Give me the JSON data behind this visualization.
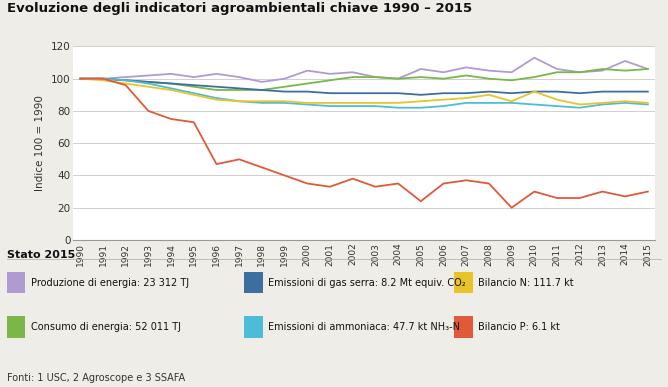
{
  "title": "Evoluzione degli indicatori agroambientali chiave 1990 – 2015",
  "ylabel": "Indice 100 = 1990",
  "years": [
    1990,
    1991,
    1992,
    1993,
    1994,
    1995,
    1996,
    1997,
    1998,
    1999,
    2000,
    2001,
    2002,
    2003,
    2004,
    2005,
    2006,
    2007,
    2008,
    2009,
    2010,
    2011,
    2012,
    2013,
    2014,
    2015
  ],
  "series": [
    {
      "name": "Produzione di energia",
      "color": "#b09ad2",
      "values": [
        100,
        100,
        101,
        102,
        103,
        101,
        103,
        101,
        98,
        100,
        105,
        103,
        104,
        101,
        100,
        106,
        104,
        107,
        105,
        104,
        113,
        106,
        104,
        105,
        111,
        106
      ]
    },
    {
      "name": "Consumo di energia",
      "color": "#7ab648",
      "values": [
        100,
        100,
        99,
        98,
        97,
        95,
        93,
        93,
        93,
        95,
        97,
        99,
        101,
        101,
        100,
        101,
        100,
        102,
        100,
        99,
        101,
        104,
        104,
        106,
        105,
        106
      ]
    },
    {
      "name": "Emissioni di gas serra",
      "color": "#3c6fa0",
      "values": [
        100,
        100,
        99,
        98,
        97,
        96,
        95,
        94,
        93,
        92,
        92,
        91,
        91,
        91,
        91,
        90,
        91,
        91,
        92,
        91,
        92,
        92,
        91,
        92,
        92,
        92
      ]
    },
    {
      "name": "Emissioni di ammoniaca",
      "color": "#4dbcd8",
      "values": [
        100,
        100,
        99,
        97,
        94,
        91,
        88,
        86,
        85,
        85,
        84,
        83,
        83,
        83,
        82,
        82,
        83,
        85,
        85,
        85,
        84,
        83,
        82,
        84,
        85,
        84
      ]
    },
    {
      "name": "Bilancio N",
      "color": "#e8c428",
      "values": [
        100,
        99,
        97,
        95,
        93,
        90,
        87,
        86,
        86,
        86,
        85,
        85,
        85,
        85,
        85,
        86,
        87,
        88,
        90,
        86,
        92,
        87,
        84,
        85,
        86,
        85
      ]
    },
    {
      "name": "Bilancio P",
      "color": "#e05a3a",
      "values": [
        100,
        100,
        96,
        80,
        75,
        73,
        47,
        50,
        45,
        40,
        35,
        33,
        38,
        33,
        35,
        24,
        35,
        37,
        35,
        20,
        30,
        26,
        26,
        30,
        27,
        30
      ]
    }
  ],
  "ylim": [
    0,
    120
  ],
  "yticks": [
    0,
    20,
    40,
    60,
    80,
    100,
    120
  ],
  "subtitle": "Stato 2015",
  "footnote": "Fonti: 1 USC, 2 Agroscope e 3 SSAFA",
  "background_color": "#eeede8",
  "plot_background": "#ffffff",
  "legend_items": [
    {
      "label": "Produzione di energia: 23 312 TJ",
      "color": "#b09ad2"
    },
    {
      "label": "Emissioni di gas serra: 8.2 Mt equiv. CO₂",
      "color": "#3c6fa0"
    },
    {
      "label": "Bilancio N: 111.7 kt",
      "color": "#e8c428"
    },
    {
      "label": "Consumo di energia: 52 011 TJ",
      "color": "#7ab648"
    },
    {
      "label": "Emissioni di ammoniaca: 47.7 kt NH₃-N",
      "color": "#4dbcd8"
    },
    {
      "label": "Bilancio P: 6.1 kt",
      "color": "#e05a3a"
    }
  ]
}
